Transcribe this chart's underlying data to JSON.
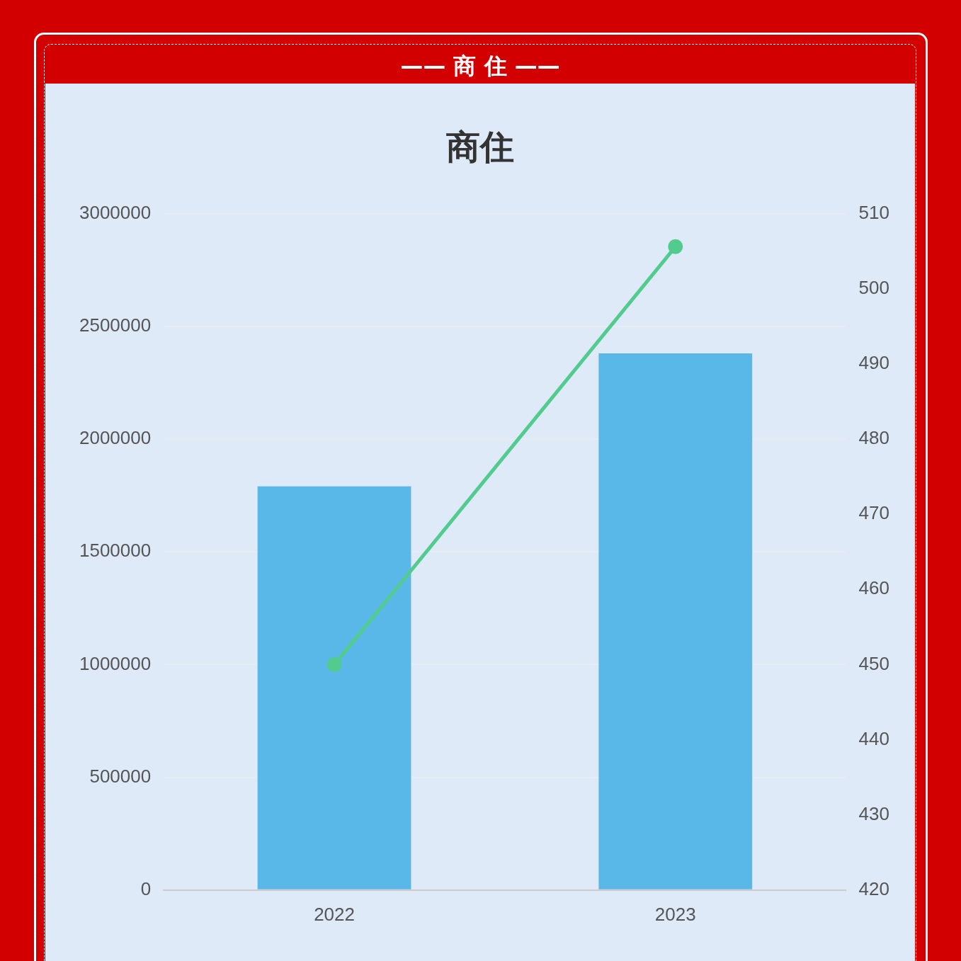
{
  "chart_data": {
    "type": "bar",
    "title": "商住",
    "annotations": [
      "—— 商 住 ——"
    ],
    "categories": [
      "2022",
      "2023"
    ],
    "series": [
      {
        "color": "#5ab8e8",
        "values": [
          1790000,
          2380000
        ]
      },
      {
        "type": "line",
        "axis": "y2",
        "color": "#52cb8e",
        "values": [
          450,
          505.6
        ],
        "marker": "circle"
      }
    ],
    "ylim": [
      0,
      3000000
    ],
    "yticks": [
      0,
      500000,
      1000000,
      1500000,
      2000000,
      2500000,
      3000000
    ],
    "y2lim": [
      420,
      510
    ],
    "y2ticks": [
      420,
      430,
      440,
      450,
      460,
      470,
      480,
      490,
      500,
      510
    ],
    "grid": "y",
    "legend": false
  }
}
